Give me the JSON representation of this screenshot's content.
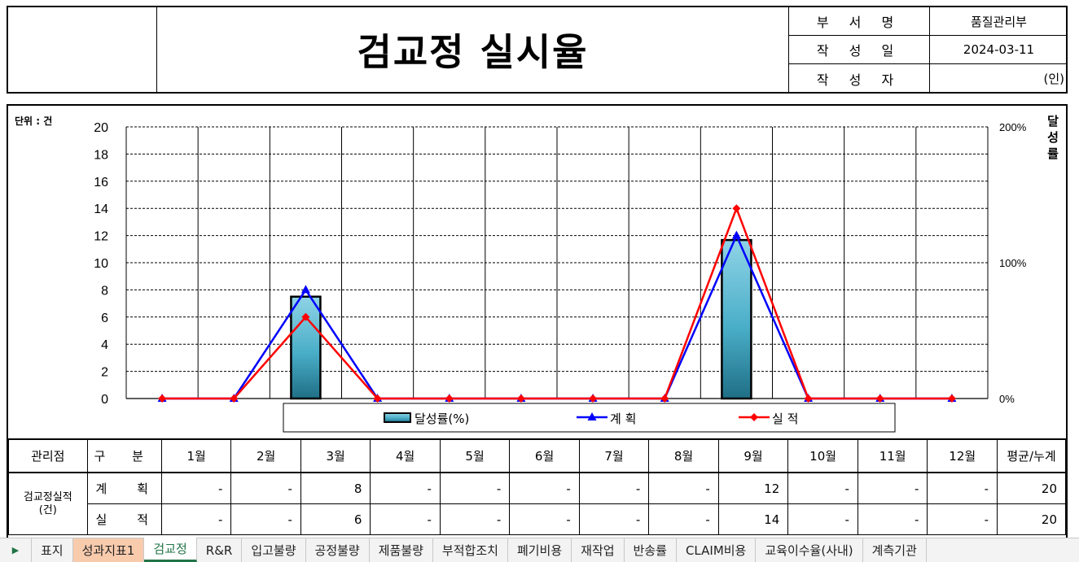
{
  "header": {
    "title": "검교정 실시율",
    "meta": [
      {
        "key": "부 서 명",
        "value": "품질관리부"
      },
      {
        "key": "작 성 일",
        "value": "2024-03-11"
      },
      {
        "key": "작 성 자",
        "value": "(인)"
      }
    ]
  },
  "chart": {
    "unit_label": "단위 : 건",
    "y2_title": "달성률"
  },
  "chart_data": {
    "type": "bar",
    "categories": [
      "1월",
      "2월",
      "3월",
      "4월",
      "5월",
      "6월",
      "7월",
      "8월",
      "9월",
      "10월",
      "11월",
      "12월"
    ],
    "ylim": [
      0,
      20
    ],
    "yticks": [
      0,
      2,
      4,
      6,
      8,
      10,
      12,
      14,
      16,
      18,
      20
    ],
    "y2lim": [
      0,
      200
    ],
    "y2ticks": [
      "0%",
      "100%",
      "200%"
    ],
    "grid": true,
    "legend_position": "bottom",
    "series": [
      {
        "name": "달성률(%)",
        "kind": "bar",
        "axis": "right",
        "color": "#4bacc6",
        "values": [
          0,
          0,
          75,
          0,
          0,
          0,
          0,
          0,
          116.7,
          0,
          0,
          0
        ]
      },
      {
        "name": "계 획",
        "kind": "line",
        "marker": "triangle",
        "color": "#0000ff",
        "values": [
          0,
          0,
          8,
          0,
          0,
          0,
          0,
          0,
          12,
          0,
          0,
          0
        ]
      },
      {
        "name": "실 적",
        "kind": "line",
        "marker": "diamond",
        "color": "#ff0000",
        "values": [
          0,
          0,
          6,
          0,
          0,
          0,
          0,
          0,
          14,
          0,
          0,
          0
        ]
      }
    ]
  },
  "table": {
    "headers": [
      "관리점",
      "구 분",
      "1월",
      "2월",
      "3월",
      "4월",
      "5월",
      "6월",
      "7월",
      "8월",
      "9월",
      "10월",
      "11월",
      "12월",
      "평균/누계"
    ],
    "group_label": "검교정실적\n(건)",
    "rows": [
      {
        "label": "계 획",
        "cells": [
          "-",
          "-",
          "8",
          "-",
          "-",
          "-",
          "-",
          "-",
          "12",
          "-",
          "-",
          "-",
          "20"
        ]
      },
      {
        "label": "실 적",
        "cells": [
          "-",
          "-",
          "6",
          "-",
          "-",
          "-",
          "-",
          "-",
          "14",
          "-",
          "-",
          "-",
          "20"
        ]
      }
    ]
  },
  "sheet_tabs": [
    {
      "label": "표지",
      "style": "normal"
    },
    {
      "label": "성과지표1",
      "style": "orange"
    },
    {
      "label": "검교정",
      "style": "active"
    },
    {
      "label": "R&R",
      "style": "normal"
    },
    {
      "label": "입고불량",
      "style": "normal"
    },
    {
      "label": "공정불량",
      "style": "normal"
    },
    {
      "label": "제품불량",
      "style": "normal"
    },
    {
      "label": "부적합조치",
      "style": "normal"
    },
    {
      "label": "폐기비용",
      "style": "normal"
    },
    {
      "label": "재작업",
      "style": "normal"
    },
    {
      "label": "반송률",
      "style": "normal"
    },
    {
      "label": "CLAIM비용",
      "style": "normal"
    },
    {
      "label": "교육이수율(사내)",
      "style": "normal"
    },
    {
      "label": "계측기관",
      "style": "normal"
    }
  ]
}
